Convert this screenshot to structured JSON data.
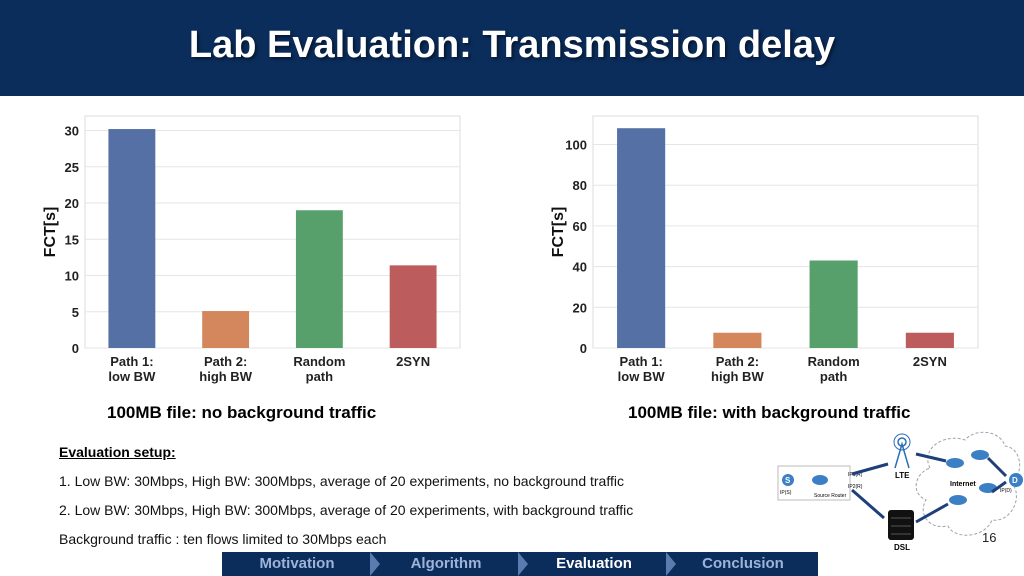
{
  "header": {
    "title": "Lab Evaluation: Transmission delay"
  },
  "captions": {
    "left": "100MB file: no background traffic",
    "right": "100MB file: with background traffic"
  },
  "setup": {
    "title": "Evaluation setup:",
    "line1": "1.   Low BW: 30Mbps, High BW: 300Mbps,  average of 20 experiments, no background traffic",
    "line2": "2.   Low BW: 30Mbps, High BW: 300Mbps,  average of 20 experiments, with background traffic",
    "line3": "Background traffic : ten flows limited to 30Mbps each"
  },
  "page_number": "16",
  "nav": {
    "items": [
      "Motivation",
      "Algorithm",
      "Evaluation",
      "Conclusion"
    ],
    "active": "Evaluation"
  },
  "diagram": {
    "lte": "LTE",
    "dsl": "DSL",
    "internet": "Internet",
    "s": "S",
    "d": "D",
    "router": "Source Router",
    "ip_s": "IP(S)",
    "ip_d": "IP(D)",
    "ip1": "IP1(R)",
    "ip2": "IP2(R)"
  },
  "chart_data": [
    {
      "type": "bar",
      "categories": [
        "Path 1:\nlow BW",
        "Path 2:\nhigh BW",
        "Random\npath",
        "2SYN"
      ],
      "values": [
        30.2,
        5.1,
        19.0,
        11.4
      ],
      "ylabel": "FCT[s]",
      "xlabel": "",
      "ylim": [
        0,
        32
      ],
      "yticks": [
        0,
        5,
        10,
        15,
        20,
        25,
        30
      ],
      "grid": true,
      "colors": [
        "#5470a4",
        "#d4875c",
        "#58a06b",
        "#bc5c5c"
      ]
    },
    {
      "type": "bar",
      "categories": [
        "Path 1:\nlow BW",
        "Path 2:\nhigh BW",
        "Random\npath",
        "2SYN"
      ],
      "values": [
        108,
        7.5,
        43,
        7.5
      ],
      "ylabel": "FCT[s]",
      "xlabel": "",
      "ylim": [
        0,
        114
      ],
      "yticks": [
        0,
        20,
        40,
        60,
        80,
        100
      ],
      "grid": true,
      "colors": [
        "#5470a4",
        "#d4875c",
        "#58a06b",
        "#bc5c5c"
      ]
    }
  ]
}
